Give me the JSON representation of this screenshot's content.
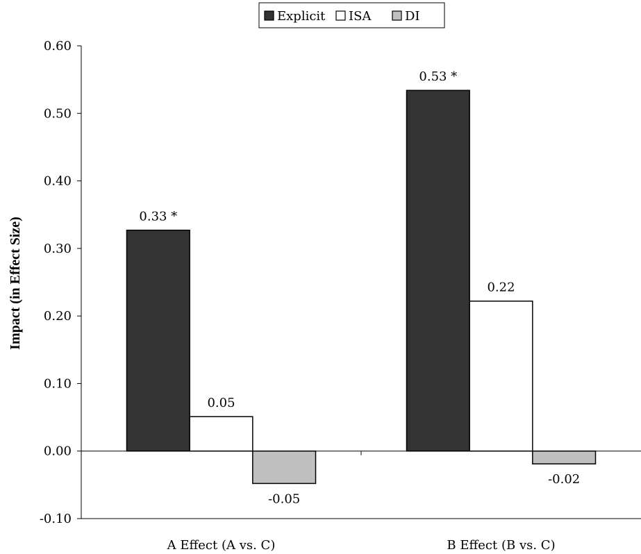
{
  "chart_data": {
    "type": "bar",
    "title": "",
    "xlabel": "",
    "ylabel": "Impact (in Effect Size)",
    "ylim": [
      -0.1,
      0.6
    ],
    "yticks": [
      "-0.10",
      "0.00",
      "0.10",
      "0.20",
      "0.30",
      "0.40",
      "0.50",
      "0.60"
    ],
    "grid": false,
    "legend_position": "top-center",
    "categories": [
      "A Effect (A vs. C)",
      "B Effect (B vs. C)"
    ],
    "series": [
      {
        "name": "Explicit",
        "color": "#333333",
        "values": [
          0.327,
          0.534
        ],
        "labels": [
          "0.33 *",
          "0.53 *"
        ]
      },
      {
        "name": "ISA",
        "color": "#ffffff",
        "values": [
          0.051,
          0.222
        ],
        "labels": [
          "0.05",
          "0.22"
        ]
      },
      {
        "name": "DI",
        "color": "#c0c0c0",
        "values": [
          -0.048,
          -0.019
        ],
        "labels": [
          "-0.05",
          "-0.02"
        ]
      }
    ]
  }
}
